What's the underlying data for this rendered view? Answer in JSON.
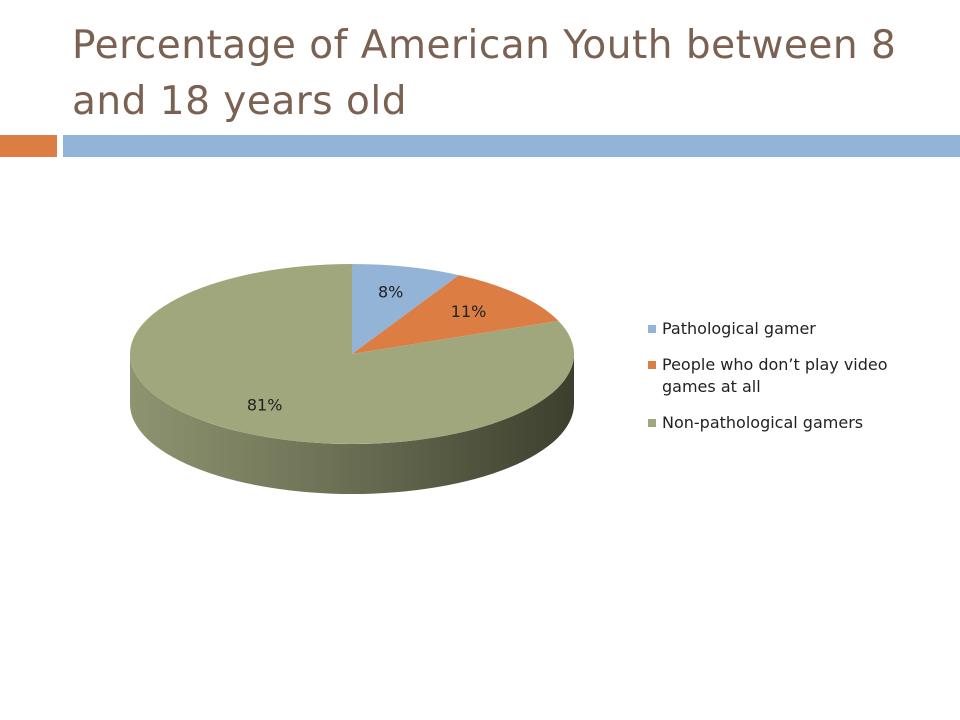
{
  "chart_data": {
    "type": "pie",
    "title": "Percentage of American Youth between 8 and 18 years old",
    "categories": [
      "Pathological gamer",
      "People who don’t play video games at all",
      "Non-pathological gamers"
    ],
    "values": [
      8,
      11,
      81
    ],
    "value_labels": [
      "8%",
      "11%",
      "81%"
    ],
    "colors": [
      "#93b3d7",
      "#dc7d44",
      "#a1a77d"
    ],
    "legend": "right"
  }
}
